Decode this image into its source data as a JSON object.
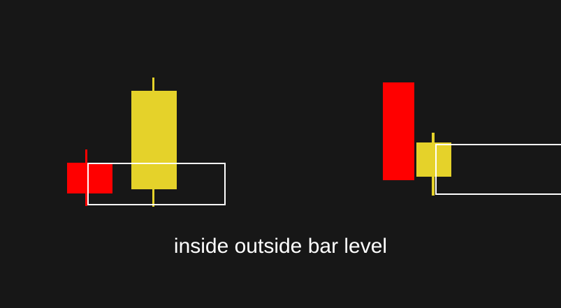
{
  "caption": "inside outside bar level",
  "colors": {
    "background": "#171717",
    "bearish": "#ff0000",
    "bullish": "#e5d22a",
    "level_box": "#ffffff"
  }
}
